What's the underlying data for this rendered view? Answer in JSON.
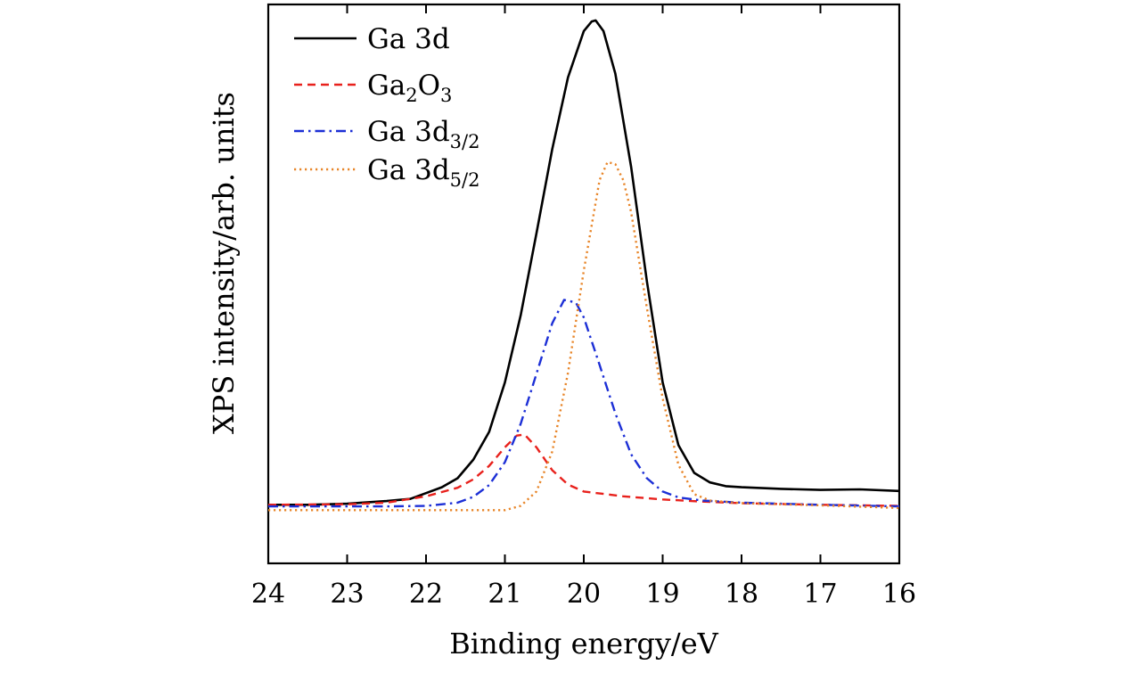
{
  "chart_data": {
    "type": "line",
    "title": "",
    "xlabel": "Binding energy/eV",
    "ylabel": "XPS intensity/arb. units",
    "xlim": [
      24,
      16
    ],
    "ylim": [
      0,
      1.05
    ],
    "x_reversed": true,
    "xticks": [
      24,
      23,
      22,
      21,
      20,
      19,
      18,
      17,
      16
    ],
    "yticks": [],
    "grid": false,
    "legend_position": "top-left",
    "series": [
      {
        "name": "Ga 3d",
        "legend_main": "Ga 3d",
        "legend_sub": "",
        "legend_after": "",
        "color": "#000000",
        "style": "solid",
        "x": [
          24,
          23.5,
          23,
          22.5,
          22.2,
          22,
          21.8,
          21.6,
          21.4,
          21.2,
          21.0,
          20.8,
          20.6,
          20.4,
          20.2,
          20.0,
          19.9,
          19.85,
          19.75,
          19.6,
          19.4,
          19.2,
          19.0,
          18.8,
          18.6,
          18.4,
          18.2,
          18.0,
          17.5,
          17.0,
          16.5,
          16.0
        ],
        "y": [
          0.11,
          0.11,
          0.112,
          0.117,
          0.121,
          0.132,
          0.143,
          0.16,
          0.195,
          0.247,
          0.34,
          0.466,
          0.62,
          0.778,
          0.913,
          1.0,
          1.018,
          1.02,
          1.0,
          0.92,
          0.745,
          0.53,
          0.34,
          0.222,
          0.17,
          0.152,
          0.145,
          0.143,
          0.14,
          0.138,
          0.139,
          0.136
        ]
      },
      {
        "name": "Ga2O3",
        "legend_main": "Ga",
        "legend_sub": "2",
        "legend_after": "O",
        "legend_sub2": "3",
        "color": "#e8211c",
        "style": "dashed",
        "x": [
          24,
          23,
          22.5,
          22,
          21.6,
          21.4,
          21.2,
          21.0,
          20.85,
          20.75,
          20.6,
          20.4,
          20.2,
          20.0,
          19.5,
          19,
          18.5,
          18,
          17,
          16
        ],
        "y": [
          0.11,
          0.111,
          0.114,
          0.126,
          0.142,
          0.158,
          0.183,
          0.218,
          0.24,
          0.242,
          0.218,
          0.175,
          0.148,
          0.135,
          0.126,
          0.12,
          0.116,
          0.113,
          0.11,
          0.108
        ],
        "legend_full": "Ga2O3"
      },
      {
        "name": "Ga 3d3/2",
        "legend_main": "Ga 3d",
        "legend_sub": "3/2",
        "legend_after": "",
        "color": "#1c2fd6",
        "style": "dashdot",
        "x": [
          24,
          22.5,
          22,
          21.6,
          21.4,
          21.2,
          21.0,
          20.8,
          20.6,
          20.4,
          20.25,
          20.1,
          20.0,
          19.8,
          19.6,
          19.4,
          19.2,
          19.0,
          18.8,
          18.5,
          18,
          17,
          16
        ],
        "y": [
          0.107,
          0.107,
          0.108,
          0.114,
          0.125,
          0.147,
          0.19,
          0.262,
          0.356,
          0.451,
          0.495,
          0.49,
          0.462,
          0.373,
          0.282,
          0.205,
          0.16,
          0.135,
          0.124,
          0.118,
          0.114,
          0.11,
          0.107
        ]
      },
      {
        "name": "Ga 3d5/2",
        "legend_main": "Ga 3d",
        "legend_sub": "5/2",
        "legend_after": "",
        "color": "#e8862a",
        "style": "dotted",
        "x": [
          24,
          21.0,
          20.8,
          20.6,
          20.4,
          20.2,
          20.0,
          19.8,
          19.7,
          19.6,
          19.5,
          19.4,
          19.2,
          19.0,
          18.8,
          18.6,
          18.4,
          18.0,
          17.0,
          16.0
        ],
        "y": [
          0.1,
          0.1,
          0.108,
          0.135,
          0.21,
          0.358,
          0.55,
          0.72,
          0.754,
          0.75,
          0.72,
          0.66,
          0.48,
          0.31,
          0.185,
          0.13,
          0.118,
          0.113,
          0.109,
          0.104
        ]
      }
    ]
  }
}
